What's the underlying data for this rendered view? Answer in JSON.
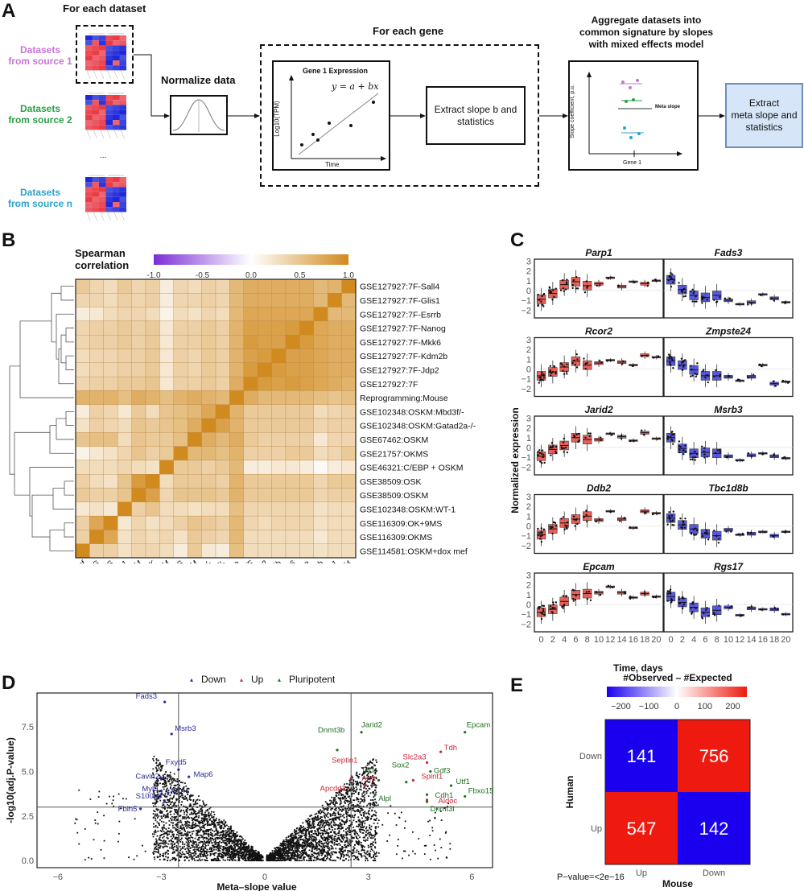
{
  "panelA": {
    "letter": "A",
    "for_each_dataset": "For each dataset",
    "sources": [
      {
        "label_line1": "Datasets",
        "label_line2": "from source 1",
        "color": "#c774d6"
      },
      {
        "label_line1": "Datasets",
        "label_line2": "from source 2",
        "color": "#2e9e4a"
      },
      {
        "label_line1": "Datasets",
        "label_line2": "from source n",
        "color": "#2aa3c9"
      }
    ],
    "ellipsis": "...",
    "normalize_label": "Normalize data",
    "for_each_gene": "For each gene",
    "gene_plot_title": "Gene 1 Expression",
    "gene_plot_equation": "y = a + bx",
    "gene_plot_ylabel": "Log10(TPM)",
    "gene_plot_xlabel": "Time",
    "extract_slope_line1": "Extract slope b and",
    "extract_slope_line2": "statistics",
    "aggregate_line1": "Aggregate datasets into",
    "aggregate_line2": "common signature by slopes",
    "aggregate_line3": "with mixed effects model",
    "meta_plot_ylabel": "Slope coefficient, p.u.",
    "meta_plot_xlabel": "Gene 1",
    "meta_slope_label": "Meta slope",
    "final_line1": "Extract",
    "final_line2": "meta slope and",
    "final_line3": "statistics",
    "final_box_color": "#d6e5f7",
    "final_box_border": "#6c8ebf"
  },
  "chart_data": [
    {
      "id": "B",
      "type": "heatmap",
      "title": "Spearman correlation",
      "colorbar": {
        "min": -1.0,
        "max": 1.0,
        "ticks": [
          "-1.0",
          "-0.5",
          "0.0",
          "0.5",
          "1.0"
        ],
        "low_color": "#7b2fd6",
        "mid_color": "#ffffff",
        "high_color": "#d18a1d"
      },
      "row_labels": [
        "GSE127927:7F-Sall4",
        "GSE127927:7F-Glis1",
        "GSE127927:7F-Esrrb",
        "GSE127927:7F-Nanog",
        "GSE127927:7F-Mkk6",
        "GSE127927:7F-Kdm2b",
        "GSE127927:7F-Jdp2",
        "GSE127927:7F",
        "Reprogramming:Mouse",
        "GSE102348:OSKM:Mbd3f/-",
        "GSE102348:OSKM:Gatad2a-/-",
        "GSE67462:OSKM",
        "GSE21757:OKMS",
        "GSE46321:C/EBP  + OSKM",
        "GSE38509:OSK",
        "GSE38509:OSKM",
        "GSE102348:OSKM:WT-1",
        "GSE116309:OK+9MS",
        "GSE116309:OKMS",
        "GSE114581:OSKM+dox mef"
      ],
      "col_labels": [
        "GSE114581:OSKM+dox mef",
        "GSE116309:OKMS",
        "GSE116309:OK+9MS",
        "GSE102348:OSKM:WT-1",
        "GSE38509:OSKM",
        "GSE38509:OSK",
        "GSE46321:C/EBP  + OSKM",
        "GSE21757:OKMS",
        "GSE67462:OSKM",
        "GSE102348:OSKM:Gatad2a-/-",
        "GSE102348:OSKM:Mbd3f/-",
        "Reprogramming:Mouse",
        "GSE127927:7F",
        "GSE127927:7F-Jdp2",
        "GSE127927:7F-Kdm2b",
        "GSE127927:7F-Mkk6",
        "GSE127927:7F-Nanog",
        "GSE127927:7F-Esrrb",
        "GSE127927:7F-Glis1",
        "GSE127927:7F-Sall4"
      ],
      "values": [
        [
          0.45,
          0.35,
          0.3,
          0.45,
          0.35,
          0.4,
          0.15,
          0.35,
          0.3,
          0.4,
          0.35,
          0.6,
          0.7,
          0.7,
          0.7,
          0.7,
          0.7,
          0.6,
          0.65,
          1.0
        ],
        [
          0.35,
          0.35,
          0.3,
          0.4,
          0.35,
          0.4,
          0.15,
          0.35,
          0.35,
          0.4,
          0.35,
          0.6,
          0.7,
          0.7,
          0.7,
          0.7,
          0.7,
          0.6,
          1.0,
          0.6
        ],
        [
          0.15,
          0.2,
          0.3,
          0.35,
          0.35,
          0.3,
          0.1,
          0.3,
          0.25,
          0.35,
          0.3,
          0.6,
          0.75,
          0.75,
          0.75,
          0.75,
          0.75,
          1.0,
          0.6,
          0.6
        ],
        [
          0.35,
          0.4,
          0.4,
          0.45,
          0.4,
          0.45,
          0.2,
          0.4,
          0.4,
          0.45,
          0.4,
          0.65,
          0.8,
          0.8,
          0.8,
          0.85,
          1.0,
          0.75,
          0.7,
          0.7
        ],
        [
          0.35,
          0.4,
          0.4,
          0.45,
          0.4,
          0.45,
          0.2,
          0.4,
          0.4,
          0.45,
          0.4,
          0.65,
          0.85,
          0.8,
          0.8,
          1.0,
          0.85,
          0.75,
          0.7,
          0.7
        ],
        [
          0.3,
          0.35,
          0.35,
          0.4,
          0.4,
          0.45,
          0.2,
          0.4,
          0.35,
          0.45,
          0.4,
          0.65,
          0.8,
          0.85,
          1.0,
          0.8,
          0.8,
          0.75,
          0.7,
          0.7
        ],
        [
          0.3,
          0.35,
          0.35,
          0.4,
          0.4,
          0.45,
          0.2,
          0.4,
          0.35,
          0.45,
          0.4,
          0.65,
          0.85,
          1.0,
          0.85,
          0.8,
          0.8,
          0.75,
          0.7,
          0.7
        ],
        [
          0.35,
          0.4,
          0.4,
          0.45,
          0.45,
          0.5,
          0.2,
          0.4,
          0.4,
          0.45,
          0.4,
          0.7,
          1.0,
          0.85,
          0.8,
          0.85,
          0.8,
          0.75,
          0.7,
          0.65
        ],
        [
          0.65,
          0.65,
          0.65,
          0.55,
          0.7,
          0.65,
          0.55,
          0.65,
          0.7,
          0.65,
          0.6,
          1.0,
          0.7,
          0.6,
          0.6,
          0.6,
          0.6,
          0.55,
          0.5,
          0.55
        ],
        [
          0.15,
          0.4,
          0.35,
          0.2,
          0.45,
          0.3,
          0.5,
          0.55,
          0.6,
          0.75,
          1.0,
          0.65,
          0.45,
          0.45,
          0.45,
          0.45,
          0.45,
          0.3,
          0.35,
          0.4
        ],
        [
          0.25,
          0.4,
          0.35,
          0.3,
          0.5,
          0.45,
          0.5,
          0.55,
          0.7,
          1.0,
          0.8,
          0.65,
          0.45,
          0.45,
          0.45,
          0.45,
          0.45,
          0.35,
          0.4,
          0.4
        ],
        [
          0.5,
          0.55,
          0.55,
          0.3,
          0.5,
          0.45,
          0.45,
          0.55,
          1.0,
          0.7,
          0.6,
          0.7,
          0.45,
          0.4,
          0.4,
          0.4,
          0.4,
          0.2,
          0.35,
          0.35
        ],
        [
          0.1,
          0.2,
          0.25,
          0.35,
          0.5,
          0.4,
          0.45,
          1.0,
          0.6,
          0.6,
          0.55,
          0.65,
          0.4,
          0.4,
          0.4,
          0.45,
          0.45,
          0.3,
          0.35,
          0.45
        ],
        [
          0.3,
          0.3,
          0.3,
          0.35,
          0.3,
          0.25,
          1.0,
          0.45,
          0.45,
          0.4,
          0.45,
          0.6,
          0.15,
          0.15,
          0.2,
          0.2,
          0.15,
          0.05,
          0.15,
          0.2
        ],
        [
          0.4,
          0.3,
          0.25,
          0.5,
          0.85,
          1.0,
          0.3,
          0.45,
          0.45,
          0.45,
          0.4,
          0.65,
          0.45,
          0.45,
          0.45,
          0.45,
          0.45,
          0.35,
          0.45,
          0.45
        ],
        [
          0.45,
          0.4,
          0.4,
          0.5,
          1.0,
          0.8,
          0.35,
          0.5,
          0.5,
          0.5,
          0.45,
          0.65,
          0.45,
          0.45,
          0.45,
          0.45,
          0.45,
          0.35,
          0.4,
          0.4
        ],
        [
          0.2,
          0.25,
          0.2,
          1.0,
          0.4,
          0.5,
          0.3,
          0.3,
          0.25,
          0.3,
          0.3,
          0.55,
          0.35,
          0.35,
          0.35,
          0.35,
          0.35,
          0.25,
          0.3,
          0.3
        ],
        [
          0.4,
          0.75,
          1.0,
          0.2,
          0.35,
          0.25,
          0.3,
          0.4,
          0.5,
          0.45,
          0.4,
          0.6,
          0.35,
          0.3,
          0.35,
          0.35,
          0.35,
          0.25,
          0.3,
          0.3
        ],
        [
          0.4,
          1.0,
          0.75,
          0.25,
          0.35,
          0.3,
          0.35,
          0.25,
          0.45,
          0.4,
          0.35,
          0.6,
          0.3,
          0.3,
          0.3,
          0.3,
          0.3,
          0.2,
          0.3,
          0.3
        ],
        [
          1.0,
          0.4,
          0.4,
          0.25,
          0.35,
          0.35,
          0.3,
          0.15,
          0.45,
          0.2,
          0.15,
          0.55,
          0.3,
          0.3,
          0.3,
          0.3,
          0.3,
          0.25,
          0.3,
          0.3
        ]
      ],
      "dendrogram": "hierarchical clustering tree on rows (left side)"
    },
    {
      "id": "C",
      "type": "box",
      "ylabel": "Normalized expression",
      "xlabel": "Time, days",
      "x_ticks": [
        "0",
        "2",
        "4",
        "6",
        "8",
        "10",
        "12",
        "14",
        "16",
        "18",
        "20"
      ],
      "y_ticks": [
        "3",
        "2",
        "1",
        "0",
        "-1",
        "-2"
      ],
      "ylim": [
        -2.8,
        3.2
      ],
      "up_color": "#e8504a",
      "down_color": "#4848e0",
      "panels": [
        {
          "gene": "Parp1",
          "direction": "up",
          "medians": [
            -0.9,
            -0.3,
            0.6,
            0.9,
            0.5,
            0.7,
            1.3,
            0.4,
            0.9,
            0.7,
            1.0
          ]
        },
        {
          "gene": "Fads3",
          "direction": "down",
          "medians": [
            1.1,
            0.1,
            -0.5,
            -0.7,
            -0.5,
            -1.0,
            -1.4,
            -1.2,
            -0.4,
            -0.8,
            -1.2
          ]
        },
        {
          "gene": "Rcor2",
          "direction": "up",
          "medians": [
            -0.7,
            -0.3,
            0.2,
            0.8,
            0.4,
            0.6,
            0.9,
            0.7,
            0.4,
            1.4,
            1.2
          ]
        },
        {
          "gene": "Zmpste24",
          "direction": "down",
          "medians": [
            0.8,
            0.4,
            -0.1,
            -0.7,
            -0.7,
            -0.8,
            -1.2,
            -0.8,
            0.4,
            -1.5,
            -1.3
          ]
        },
        {
          "gene": "Jarid2",
          "direction": "up",
          "medians": [
            -0.9,
            -0.2,
            0.2,
            1.0,
            0.8,
            0.8,
            1.4,
            1.1,
            0.7,
            1.5,
            0.9
          ]
        },
        {
          "gene": "Msrb3",
          "direction": "down",
          "medians": [
            1.0,
            -0.1,
            -0.6,
            -0.5,
            -0.6,
            -0.9,
            -1.3,
            -0.8,
            -0.6,
            -0.9,
            -1.1
          ]
        },
        {
          "gene": "Ddb2",
          "direction": "up",
          "medians": [
            -0.9,
            -0.3,
            0.3,
            0.7,
            1.0,
            0.6,
            1.5,
            0.7,
            -0.2,
            1.5,
            1.3
          ]
        },
        {
          "gene": "Tbc1d8b",
          "direction": "down",
          "medians": [
            0.8,
            0.1,
            -0.3,
            -0.8,
            -1.0,
            -0.4,
            -0.9,
            -0.8,
            -0.6,
            -1.0,
            -0.6
          ]
        },
        {
          "gene": "Epcam",
          "direction": "up",
          "medians": [
            -0.8,
            -0.5,
            0.3,
            1.0,
            1.1,
            1.2,
            1.8,
            1.2,
            0.7,
            1.1,
            0.8
          ]
        },
        {
          "gene": "Rgs17",
          "direction": "down",
          "medians": [
            0.8,
            0.2,
            -0.3,
            -0.8,
            -0.6,
            -0.3,
            -1.1,
            -0.4,
            -0.5,
            -0.5,
            -1.0
          ]
        }
      ]
    },
    {
      "id": "D",
      "type": "scatter",
      "xlabel": "Meta-slope value",
      "ylabel": "-log10(adj.P-value)",
      "xlim": [
        -6.6,
        6.6
      ],
      "ylim": [
        -0.4,
        9.4
      ],
      "x_ticks": [
        "-6",
        "-3",
        "0",
        "3",
        "6"
      ],
      "y_ticks": [
        "0.0",
        "2.5",
        "5.0",
        "7.5"
      ],
      "thresholds": {
        "x": [
          -2.5,
          2.5
        ],
        "y": 3.0
      },
      "legend": [
        {
          "label": "Down",
          "color": "#2a2a9a"
        },
        {
          "label": "Up",
          "color": "#c8283a"
        },
        {
          "label": "Pluripotent",
          "color": "#1f6e1f"
        }
      ],
      "labeled_points": [
        {
          "label": "Fads3",
          "x": -2.9,
          "y": 8.9,
          "group": "Down"
        },
        {
          "label": "Msrb3",
          "x": -2.7,
          "y": 7.1,
          "group": "Down"
        },
        {
          "label": "Fxyd5",
          "x": -2.5,
          "y": 5.1,
          "group": "Down"
        },
        {
          "label": "Cavin2",
          "x": -3.0,
          "y": 4.6,
          "group": "Down"
        },
        {
          "label": "Map6",
          "x": -2.2,
          "y": 4.7,
          "group": "Down"
        },
        {
          "label": "Myl9",
          "x": -3.0,
          "y": 3.9,
          "group": "Down"
        },
        {
          "label": "Ccn4",
          "x": -2.8,
          "y": 3.8,
          "group": "Down"
        },
        {
          "label": "S100a4",
          "x": -2.9,
          "y": 3.3,
          "group": "Down"
        },
        {
          "label": "Fbln5",
          "x": -3.6,
          "y": 2.9,
          "group": "Down"
        },
        {
          "label": "Septin1",
          "x": 2.5,
          "y": 4.6,
          "group": "Up"
        },
        {
          "label": "Arnt",
          "x": 2.9,
          "y": 4.2,
          "group": "Up"
        },
        {
          "label": "Apcdd1",
          "x": 2.3,
          "y": 4.0,
          "group": "Up"
        },
        {
          "label": "Slc2a3",
          "x": 4.7,
          "y": 5.5,
          "group": "Up"
        },
        {
          "label": "Tdh",
          "x": 5.1,
          "y": 6.1,
          "group": "Up"
        },
        {
          "label": "Spint1",
          "x": 4.3,
          "y": 4.5,
          "group": "Up"
        },
        {
          "label": "Aldoc",
          "x": 4.7,
          "y": 3.4,
          "group": "Up"
        },
        {
          "label": "Jarid2",
          "x": 2.8,
          "y": 7.2,
          "group": "Pluripotent"
        },
        {
          "label": "Epcam",
          "x": 5.8,
          "y": 7.2,
          "group": "Pluripotent"
        },
        {
          "label": "Dnmt3b",
          "x": 2.1,
          "y": 6.2,
          "group": "Pluripotent"
        },
        {
          "label": "Tet1",
          "x": 3.3,
          "y": 4.5,
          "group": "Pluripotent"
        },
        {
          "label": "Sox2",
          "x": 4.1,
          "y": 4.4,
          "group": "Pluripotent"
        },
        {
          "label": "Gdf3",
          "x": 4.8,
          "y": 5.0,
          "group": "Pluripotent"
        },
        {
          "label": "Alpl",
          "x": 3.2,
          "y": 3.7,
          "group": "Pluripotent"
        },
        {
          "label": "Utf1",
          "x": 5.4,
          "y": 4.2,
          "group": "Pluripotent"
        },
        {
          "label": "Fbxo15",
          "x": 5.8,
          "y": 3.6,
          "group": "Pluripotent"
        },
        {
          "label": "Cdh1",
          "x": 4.7,
          "y": 3.7,
          "group": "Pluripotent"
        },
        {
          "label": "Dnmt3l",
          "x": 4.7,
          "y": 3.3,
          "group": "Pluripotent"
        }
      ],
      "background_points": "~10000 genes forming a V-shaped volcano cloud centered at 0"
    },
    {
      "id": "E",
      "type": "heatmap",
      "title": "#Observed - #Expected",
      "colorbar": {
        "min": -250,
        "max": 250,
        "ticks": [
          "-200",
          "-100",
          "0",
          "100",
          "200"
        ],
        "low_color": "#1a00ee",
        "mid_color": "#ffffff",
        "high_color": "#ee1a0f"
      },
      "xlabel": "Mouse",
      "ylabel": "Human",
      "x_categories": [
        "Up",
        "Down"
      ],
      "y_categories": [
        "Down",
        "Up"
      ],
      "cells": [
        {
          "row": "Down",
          "col": "Up",
          "count": "141",
          "sign": "negative"
        },
        {
          "row": "Down",
          "col": "Down",
          "count": "756",
          "sign": "positive"
        },
        {
          "row": "Up",
          "col": "Up",
          "count": "547",
          "sign": "positive"
        },
        {
          "row": "Up",
          "col": "Down",
          "count": "142",
          "sign": "negative"
        }
      ],
      "pvalue": "P-value=<2e-16"
    }
  ],
  "letters": {
    "B": "B",
    "C": "C",
    "D": "D",
    "E": "E"
  }
}
